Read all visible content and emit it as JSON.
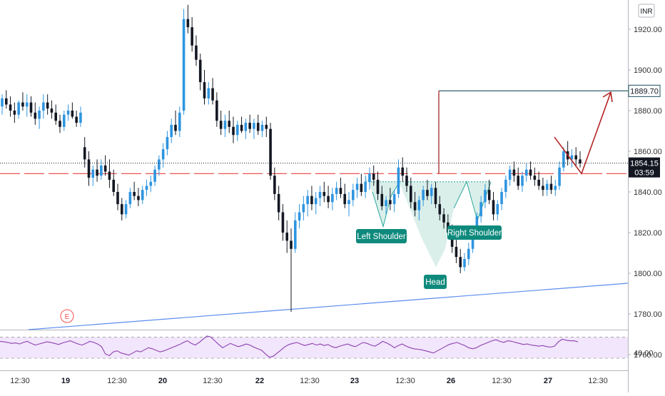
{
  "chart_data": {
    "type": "candlestick",
    "currency": "INR",
    "y_axis": {
      "range": [
        1765,
        1930
      ],
      "ticks": [
        "1920.00",
        "1900.00",
        "1880.00",
        "1860.00",
        "1840.00",
        "1820.00",
        "1800.00",
        "1780.00",
        "1760.00"
      ]
    },
    "x_axis": {
      "ticks": [
        {
          "label": "12:30",
          "bold": false
        },
        {
          "label": "19",
          "bold": true
        },
        {
          "label": "12:30",
          "bold": false
        },
        {
          "label": "20",
          "bold": true
        },
        {
          "label": "12:30",
          "bold": false
        },
        {
          "label": "22",
          "bold": true
        },
        {
          "label": "12:30",
          "bold": false
        },
        {
          "label": "23",
          "bold": true
        },
        {
          "label": "12:30",
          "bold": false
        },
        {
          "label": "26",
          "bold": true
        },
        {
          "label": "12:30",
          "bold": false
        },
        {
          "label": "27",
          "bold": true
        },
        {
          "label": "12:30",
          "bold": false
        }
      ]
    },
    "last_price": "1854.15",
    "countdown": "03:59",
    "target_price": "1889.70",
    "neckline_price": 1849,
    "earnings_marker": "E",
    "pattern_labels": {
      "left_shoulder": "Left Shoulder",
      "head": "Head",
      "right_shoulder": "Right Shoulder"
    },
    "rsi": {
      "tick": "40.00",
      "band_upper": 70,
      "band_lower": 30,
      "values": [
        62,
        61,
        60,
        58,
        59,
        57,
        60,
        62,
        58,
        55,
        57,
        59,
        61,
        60,
        58,
        56,
        59,
        61,
        63,
        60,
        57,
        55,
        58,
        62,
        60,
        57,
        52,
        38,
        35,
        42,
        44,
        40,
        38,
        36,
        40,
        44,
        42,
        46,
        50,
        48,
        45,
        42,
        44,
        47,
        50,
        53,
        56,
        60,
        63,
        58,
        55,
        60,
        66,
        72,
        70,
        63,
        56,
        50,
        54,
        58,
        55,
        52,
        54,
        57,
        55,
        51,
        48,
        45,
        38,
        32,
        34,
        40,
        46,
        52,
        56,
        58,
        60,
        57,
        54,
        56,
        58,
        55,
        57,
        54,
        56,
        52,
        50,
        53,
        55,
        57,
        54,
        52,
        56,
        60,
        58,
        55,
        53,
        57,
        62,
        59,
        55,
        50,
        54,
        57,
        53,
        50,
        48,
        47,
        46,
        44,
        42,
        40,
        44,
        48,
        52,
        56,
        58,
        60,
        57,
        54,
        50,
        48,
        50,
        54,
        57,
        60,
        63,
        65,
        62,
        60,
        63,
        62,
        60,
        58,
        56,
        57,
        55,
        54,
        53,
        54,
        52,
        51,
        53,
        61,
        66,
        64,
        63,
        63,
        61
      ]
    },
    "candles": [
      [
        1882,
        1888,
        1878,
        1886
      ],
      [
        1886,
        1890,
        1881,
        1883
      ],
      [
        1883,
        1887,
        1877,
        1880
      ],
      [
        1880,
        1884,
        1874,
        1878
      ],
      [
        1878,
        1885,
        1876,
        1884
      ],
      [
        1884,
        1889,
        1880,
        1882
      ],
      [
        1882,
        1888,
        1877,
        1884
      ],
      [
        1884,
        1887,
        1877,
        1879
      ],
      [
        1879,
        1884,
        1873,
        1876
      ],
      [
        1876,
        1882,
        1871,
        1880
      ],
      [
        1880,
        1888,
        1876,
        1884
      ],
      [
        1884,
        1888,
        1878,
        1881
      ],
      [
        1881,
        1885,
        1876,
        1879
      ],
      [
        1879,
        1883,
        1873,
        1875
      ],
      [
        1875,
        1878,
        1869,
        1872
      ],
      [
        1872,
        1880,
        1870,
        1878
      ],
      [
        1878,
        1883,
        1875,
        1880
      ],
      [
        1880,
        1884,
        1876,
        1877
      ],
      [
        1877,
        1880,
        1872,
        1874
      ],
      [
        1874,
        1882,
        1872,
        1879
      ],
      [
        1862,
        1867,
        1852,
        1856
      ],
      [
        1856,
        1860,
        1843,
        1847
      ],
      [
        1847,
        1853,
        1843,
        1851
      ],
      [
        1851,
        1856,
        1845,
        1848
      ],
      [
        1848,
        1856,
        1846,
        1853
      ],
      [
        1853,
        1858,
        1848,
        1850
      ],
      [
        1850,
        1856,
        1842,
        1846
      ],
      [
        1846,
        1851,
        1838,
        1840
      ],
      [
        1840,
        1844,
        1831,
        1834
      ],
      [
        1834,
        1837,
        1826,
        1829
      ],
      [
        1829,
        1836,
        1827,
        1834
      ],
      [
        1834,
        1842,
        1832,
        1840
      ],
      [
        1840,
        1845,
        1836,
        1838
      ],
      [
        1838,
        1842,
        1833,
        1836
      ],
      [
        1836,
        1843,
        1834,
        1841
      ],
      [
        1841,
        1846,
        1838,
        1843
      ],
      [
        1843,
        1848,
        1840,
        1845
      ],
      [
        1845,
        1853,
        1843,
        1851
      ],
      [
        1851,
        1858,
        1848,
        1856
      ],
      [
        1856,
        1864,
        1852,
        1861
      ],
      [
        1861,
        1870,
        1858,
        1867
      ],
      [
        1867,
        1876,
        1864,
        1873
      ],
      [
        1873,
        1880,
        1868,
        1870
      ],
      [
        1870,
        1882,
        1867,
        1879
      ],
      [
        1880,
        1930,
        1878,
        1925
      ],
      [
        1925,
        1932,
        1918,
        1921
      ],
      [
        1921,
        1926,
        1909,
        1912
      ],
      [
        1912,
        1917,
        1902,
        1905
      ],
      [
        1905,
        1908,
        1890,
        1894
      ],
      [
        1894,
        1900,
        1883,
        1886
      ],
      [
        1886,
        1894,
        1883,
        1891
      ],
      [
        1891,
        1896,
        1883,
        1885
      ],
      [
        1885,
        1889,
        1872,
        1875
      ],
      [
        1875,
        1880,
        1868,
        1871
      ],
      [
        1871,
        1878,
        1867,
        1875
      ],
      [
        1875,
        1880,
        1869,
        1872
      ],
      [
        1872,
        1877,
        1864,
        1868
      ],
      [
        1868,
        1875,
        1865,
        1873
      ],
      [
        1873,
        1877,
        1869,
        1870
      ],
      [
        1870,
        1876,
        1866,
        1874
      ],
      [
        1874,
        1878,
        1869,
        1871
      ],
      [
        1871,
        1876,
        1866,
        1874
      ],
      [
        1874,
        1878,
        1868,
        1870
      ],
      [
        1870,
        1875,
        1867,
        1873
      ],
      [
        1873,
        1877,
        1867,
        1871
      ],
      [
        1871,
        1874,
        1846,
        1848
      ],
      [
        1848,
        1852,
        1836,
        1839
      ],
      [
        1839,
        1843,
        1826,
        1830
      ],
      [
        1830,
        1834,
        1816,
        1820
      ],
      [
        1820,
        1826,
        1810,
        1816
      ],
      [
        1816,
        1822,
        1781,
        1812
      ],
      [
        1812,
        1830,
        1810,
        1826
      ],
      [
        1826,
        1834,
        1822,
        1830
      ],
      [
        1830,
        1838,
        1826,
        1834
      ],
      [
        1834,
        1841,
        1828,
        1838
      ],
      [
        1838,
        1843,
        1831,
        1834
      ],
      [
        1834,
        1840,
        1829,
        1837
      ],
      [
        1837,
        1843,
        1833,
        1840
      ],
      [
        1840,
        1845,
        1835,
        1838
      ],
      [
        1838,
        1843,
        1832,
        1835
      ],
      [
        1835,
        1842,
        1831,
        1839
      ],
      [
        1839,
        1845,
        1836,
        1842
      ],
      [
        1842,
        1847,
        1837,
        1839
      ],
      [
        1839,
        1844,
        1832,
        1834
      ],
      [
        1834,
        1840,
        1828,
        1836
      ],
      [
        1836,
        1844,
        1833,
        1841
      ],
      [
        1841,
        1847,
        1837,
        1844
      ],
      [
        1844,
        1849,
        1838,
        1840
      ],
      [
        1840,
        1848,
        1837,
        1845
      ],
      [
        1845,
        1852,
        1841,
        1849
      ],
      [
        1849,
        1853,
        1843,
        1846
      ],
      [
        1846,
        1850,
        1836,
        1839
      ],
      [
        1839,
        1843,
        1831,
        1833
      ],
      [
        1833,
        1838,
        1829,
        1836
      ],
      [
        1836,
        1842,
        1831,
        1834
      ],
      [
        1834,
        1841,
        1830,
        1839
      ],
      [
        1839,
        1856,
        1837,
        1852
      ],
      [
        1852,
        1857,
        1845,
        1848
      ],
      [
        1848,
        1852,
        1840,
        1843
      ],
      [
        1843,
        1847,
        1832,
        1835
      ],
      [
        1835,
        1840,
        1828,
        1831
      ],
      [
        1831,
        1838,
        1826,
        1836
      ],
      [
        1836,
        1843,
        1833,
        1841
      ],
      [
        1841,
        1846,
        1836,
        1838
      ],
      [
        1838,
        1844,
        1834,
        1842
      ],
      [
        1842,
        1845,
        1832,
        1834
      ],
      [
        1834,
        1838,
        1826,
        1829
      ],
      [
        1829,
        1832,
        1822,
        1825
      ],
      [
        1825,
        1829,
        1817,
        1820
      ],
      [
        1820,
        1824,
        1810,
        1813
      ],
      [
        1813,
        1817,
        1805,
        1808
      ],
      [
        1808,
        1812,
        1800,
        1803
      ],
      [
        1803,
        1810,
        1801,
        1807
      ],
      [
        1807,
        1815,
        1804,
        1812
      ],
      [
        1812,
        1822,
        1810,
        1819
      ],
      [
        1819,
        1830,
        1817,
        1828
      ],
      [
        1828,
        1838,
        1825,
        1835
      ],
      [
        1835,
        1844,
        1832,
        1841
      ],
      [
        1841,
        1846,
        1834,
        1836
      ],
      [
        1836,
        1840,
        1826,
        1829
      ],
      [
        1829,
        1836,
        1826,
        1834
      ],
      [
        1834,
        1842,
        1831,
        1840
      ],
      [
        1840,
        1848,
        1837,
        1846
      ],
      [
        1846,
        1853,
        1843,
        1851
      ],
      [
        1851,
        1855,
        1845,
        1848
      ],
      [
        1848,
        1852,
        1841,
        1843
      ],
      [
        1843,
        1850,
        1840,
        1848
      ],
      [
        1848,
        1854,
        1845,
        1851
      ],
      [
        1851,
        1855,
        1846,
        1848
      ],
      [
        1848,
        1852,
        1843,
        1846
      ],
      [
        1846,
        1850,
        1841,
        1843
      ],
      [
        1843,
        1847,
        1838,
        1841
      ],
      [
        1841,
        1846,
        1838,
        1844
      ],
      [
        1844,
        1848,
        1839,
        1841
      ],
      [
        1841,
        1846,
        1838,
        1843
      ],
      [
        1843,
        1855,
        1841,
        1852
      ],
      [
        1852,
        1862,
        1850,
        1860
      ],
      [
        1860,
        1865,
        1853,
        1856
      ],
      [
        1856,
        1861,
        1852,
        1858
      ],
      [
        1858,
        1862,
        1853,
        1856
      ],
      [
        1856,
        1860,
        1852,
        1854
      ]
    ]
  }
}
